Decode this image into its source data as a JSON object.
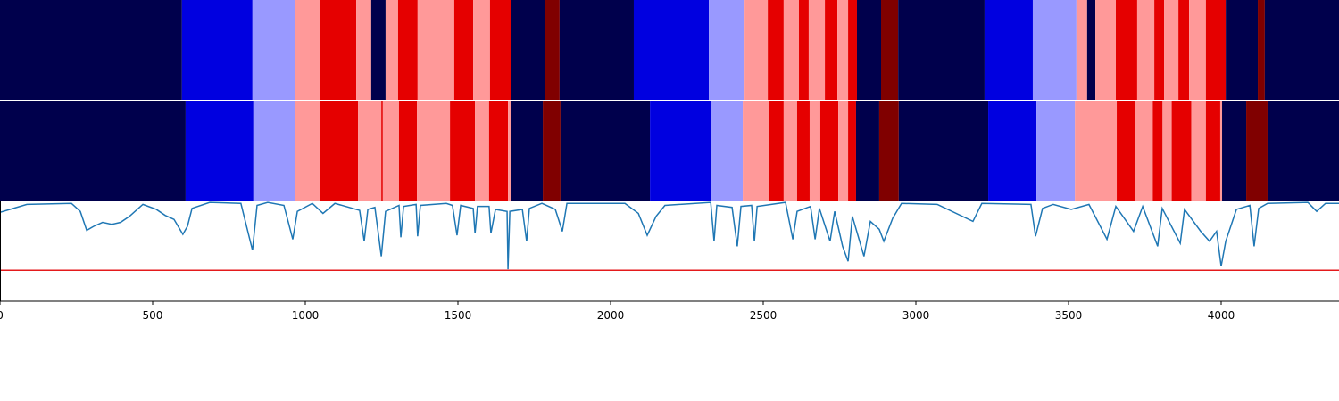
{
  "chart_data": {
    "type": "line",
    "xlim": [
      0,
      4386
    ],
    "xticks": [
      0,
      500,
      1000,
      1500,
      2000,
      2500,
      3000,
      3500,
      4000
    ],
    "ylim": [
      0,
      1
    ],
    "bands": [
      {
        "edges": [
          0,
          596,
          827,
          965,
          1047,
          1167,
          1216,
          1263,
          1304,
          1368,
          1488,
          1550,
          1605,
          1675,
          1784,
          1833,
          2076,
          2322,
          2439,
          2515,
          2567,
          2617,
          2649,
          2702,
          2743,
          2778,
          2807,
          2886,
          2942,
          3225,
          3383,
          3526,
          3561,
          3588,
          3655,
          3725,
          3781,
          3813,
          3860,
          3895,
          3950,
          4015,
          4120,
          4143,
          4386
        ],
        "colors": [
          "#00004c",
          "#0000e0",
          "#9999ff",
          "#ff9999",
          "#e50000",
          "#ff9999",
          "#00004c",
          "#ff9999",
          "#e50000",
          "#ff9999",
          "#e50000",
          "#ff9999",
          "#e50000",
          "#00004c",
          "#800000",
          "#00004c",
          "#0000e0",
          "#9999ff",
          "#ff9999",
          "#e50000",
          "#ff9999",
          "#e50000",
          "#ff9999",
          "#e50000",
          "#ff9999",
          "#e50000",
          "#00004c",
          "#800000",
          "#00004c",
          "#0000e0",
          "#9999ff",
          "#ff9999",
          "#00004c",
          "#ff9999",
          "#e50000",
          "#ff9999",
          "#e50000",
          "#ff9999",
          "#e50000",
          "#ff9999",
          "#e50000",
          "#00004c",
          "#800000",
          "#00004c"
        ]
      },
      {
        "edges": [
          0,
          608,
          830,
          965,
          1047,
          1173,
          1249,
          1254,
          1307,
          1366,
          1474,
          1556,
          1602,
          1664,
          1675,
          1778,
          1836,
          2129,
          2328,
          2433,
          2518,
          2567,
          2611,
          2652,
          2687,
          2746,
          2778,
          2804,
          2880,
          2944,
          3237,
          3395,
          3521,
          3658,
          3719,
          3776,
          3808,
          3838,
          3902,
          3950,
          3997,
          4003,
          4082,
          4152,
          4386
        ],
        "colors": [
          "#00004c",
          "#0000e0",
          "#9999ff",
          "#ff9999",
          "#e50000",
          "#ff9999",
          "#e50000",
          "#ff9999",
          "#e50000",
          "#ff9999",
          "#e50000",
          "#ff9999",
          "#e50000",
          "#ff9999",
          "#00004c",
          "#800000",
          "#00004c",
          "#0000e0",
          "#9999ff",
          "#ff9999",
          "#e50000",
          "#ff9999",
          "#e50000",
          "#ff9999",
          "#e50000",
          "#ff9999",
          "#e50000",
          "#00004c",
          "#800000",
          "#00004c",
          "#0000e0",
          "#9999ff",
          "#ff9999",
          "#e50000",
          "#ff9999",
          "#e50000",
          "#ff9999",
          "#e50000",
          "#ff9999",
          "#e50000",
          "#ff9999",
          "#00004c",
          "#800000",
          "#00004c"
        ]
      }
    ],
    "x": [
      0,
      88,
      234,
      263,
      284,
      307,
      336,
      366,
      395,
      424,
      468,
      512,
      541,
      570,
      599,
      614,
      629,
      687,
      789,
      827,
      842,
      877,
      930,
      959,
      974,
      1023,
      1058,
      1097,
      1178,
      1193,
      1205,
      1228,
      1249,
      1263,
      1307,
      1313,
      1322,
      1363,
      1368,
      1377,
      1462,
      1482,
      1497,
      1509,
      1550,
      1556,
      1564,
      1602,
      1608,
      1623,
      1661,
      1664,
      1670,
      1711,
      1725,
      1734,
      1775,
      1819,
      1842,
      1857,
      2047,
      2091,
      2120,
      2149,
      2178,
      2328,
      2339,
      2348,
      2398,
      2415,
      2427,
      2462,
      2471,
      2480,
      2573,
      2597,
      2611,
      2655,
      2670,
      2684,
      2719,
      2734,
      2760,
      2778,
      2792,
      2830,
      2851,
      2880,
      2895,
      2924,
      2953,
      3070,
      3187,
      3216,
      3377,
      3392,
      3415,
      3450,
      3509,
      3567,
      3626,
      3655,
      3713,
      3743,
      3792,
      3807,
      3866,
      3880,
      3933,
      3962,
      3985,
      4000,
      4015,
      4050,
      4094,
      4108,
      4123,
      4152,
      4284,
      4313,
      4342,
      4386
    ],
    "series": [
      {
        "color": "#1f77b4",
        "values": [
          0.89,
          0.97,
          0.98,
          0.9,
          0.71,
          0.75,
          0.79,
          0.77,
          0.79,
          0.85,
          0.97,
          0.92,
          0.86,
          0.82,
          0.67,
          0.75,
          0.93,
          0.99,
          0.98,
          0.51,
          0.96,
          0.99,
          0.96,
          0.62,
          0.9,
          0.98,
          0.88,
          0.98,
          0.91,
          0.6,
          0.92,
          0.94,
          0.45,
          0.9,
          0.96,
          0.64,
          0.95,
          0.97,
          0.65,
          0.96,
          0.98,
          0.96,
          0.66,
          0.96,
          0.93,
          0.68,
          0.95,
          0.95,
          0.68,
          0.92,
          0.9,
          0.32,
          0.9,
          0.92,
          0.6,
          0.93,
          0.98,
          0.92,
          0.7,
          0.98,
          0.98,
          0.88,
          0.66,
          0.85,
          0.96,
          0.99,
          0.6,
          0.96,
          0.94,
          0.55,
          0.95,
          0.96,
          0.6,
          0.95,
          0.99,
          0.62,
          0.9,
          0.95,
          0.62,
          0.93,
          0.6,
          0.9,
          0.55,
          0.4,
          0.85,
          0.45,
          0.8,
          0.72,
          0.6,
          0.83,
          0.98,
          0.97,
          0.8,
          0.98,
          0.97,
          0.65,
          0.93,
          0.97,
          0.92,
          0.97,
          0.62,
          0.95,
          0.7,
          0.95,
          0.55,
          0.93,
          0.58,
          0.92,
          0.7,
          0.6,
          0.7,
          0.35,
          0.6,
          0.92,
          0.96,
          0.55,
          0.93,
          0.98,
          0.99,
          0.9,
          0.98,
          0.98
        ]
      }
    ],
    "hline": {
      "value": 0.31,
      "color": "#e41a1c"
    }
  }
}
